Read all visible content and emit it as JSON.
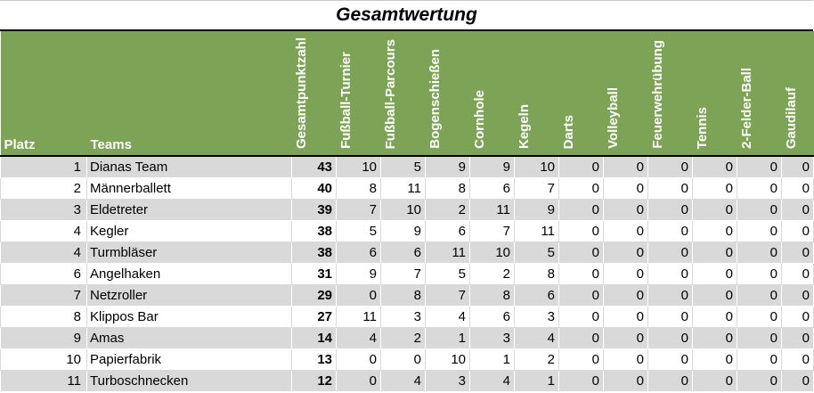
{
  "title": "Gesamtwertung",
  "headers": {
    "platz": "Platz",
    "teams": "Teams",
    "columns": [
      "Gesamtpunktzahl",
      "Fußball-Turnier",
      "Fußball-Parcours",
      "Bogenschießen",
      "Cornhole",
      "Kegeln",
      "Darts",
      "Volleyball",
      "Feuerwehrübung",
      "Tennis",
      "2-Felder-Ball",
      "Gaudilauf"
    ]
  },
  "colors": {
    "header_bg": "#7ca356",
    "row_shade": "#d9d9d9"
  },
  "rows": [
    {
      "platz": "1",
      "team": "Dianas Team",
      "values": [
        "43",
        "10",
        "5",
        "9",
        "9",
        "10",
        "0",
        "0",
        "0",
        "0",
        "0",
        "0"
      ]
    },
    {
      "platz": "2",
      "team": "Männerballett",
      "values": [
        "40",
        "8",
        "11",
        "8",
        "6",
        "7",
        "0",
        "0",
        "0",
        "0",
        "0",
        "0"
      ]
    },
    {
      "platz": "3",
      "team": "Eldetreter",
      "values": [
        "39",
        "7",
        "10",
        "2",
        "11",
        "9",
        "0",
        "0",
        "0",
        "0",
        "0",
        "0"
      ]
    },
    {
      "platz": "4",
      "team": "Kegler",
      "values": [
        "38",
        "5",
        "9",
        "6",
        "7",
        "11",
        "0",
        "0",
        "0",
        "0",
        "0",
        "0"
      ]
    },
    {
      "platz": "4",
      "team": "Turmbläser",
      "values": [
        "38",
        "6",
        "6",
        "11",
        "10",
        "5",
        "0",
        "0",
        "0",
        "0",
        "0",
        "0"
      ]
    },
    {
      "platz": "6",
      "team": "Angelhaken",
      "values": [
        "31",
        "9",
        "7",
        "5",
        "2",
        "8",
        "0",
        "0",
        "0",
        "0",
        "0",
        "0"
      ]
    },
    {
      "platz": "7",
      "team": "Netzroller",
      "values": [
        "29",
        "0",
        "8",
        "7",
        "8",
        "6",
        "0",
        "0",
        "0",
        "0",
        "0",
        "0"
      ]
    },
    {
      "platz": "8",
      "team": "Klippos Bar",
      "values": [
        "27",
        "11",
        "3",
        "4",
        "6",
        "3",
        "0",
        "0",
        "0",
        "0",
        "0",
        "0"
      ]
    },
    {
      "platz": "9",
      "team": "Amas",
      "values": [
        "14",
        "4",
        "2",
        "1",
        "3",
        "4",
        "0",
        "0",
        "0",
        "0",
        "0",
        "0"
      ]
    },
    {
      "platz": "10",
      "team": "Papierfabrik",
      "values": [
        "13",
        "0",
        "0",
        "10",
        "1",
        "2",
        "0",
        "0",
        "0",
        "0",
        "0",
        "0"
      ]
    },
    {
      "platz": "11",
      "team": "Turboschnecken",
      "values": [
        "12",
        "0",
        "4",
        "3",
        "4",
        "1",
        "0",
        "0",
        "0",
        "0",
        "0",
        "0"
      ]
    }
  ]
}
